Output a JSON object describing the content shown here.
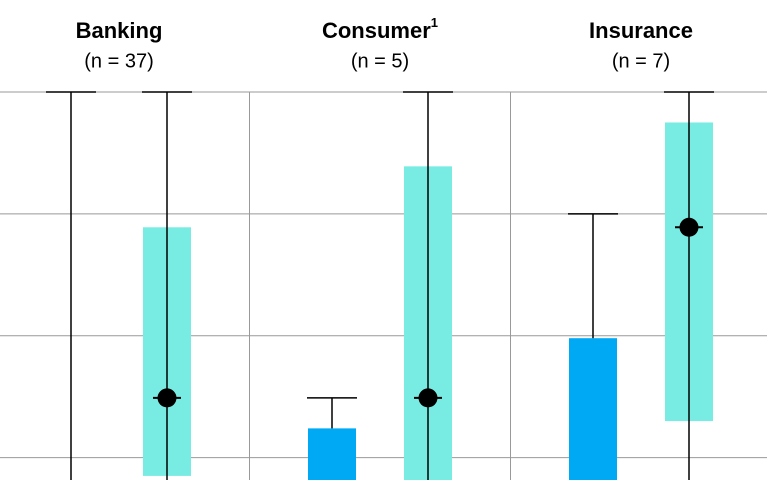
{
  "chart_data": {
    "type": "range-bar",
    "categories": [
      "Banking",
      "Consumer",
      "Insurance"
    ],
    "footnotes": [
      null,
      "1",
      null
    ],
    "subtitles": [
      "(n = 37)",
      "(n = 5)",
      "(n = 7)"
    ],
    "ylim": [
      -0.2,
      3
    ],
    "yticks": [
      0,
      1,
      2,
      3
    ],
    "grid": true,
    "series": [
      {
        "color": "#00a9f4",
        "values": [
          null,
          0.24,
          0.98
        ],
        "whisker_high": [
          3,
          0.49,
          2
        ]
      },
      {
        "color": "#78ece3",
        "values": [
          0.49,
          0.49,
          1.89
        ],
        "low": [
          -0.15,
          null,
          0.3
        ],
        "high": [
          1.89,
          2.39,
          2.75
        ],
        "whisker_high": [
          3,
          3,
          3
        ]
      }
    ]
  }
}
